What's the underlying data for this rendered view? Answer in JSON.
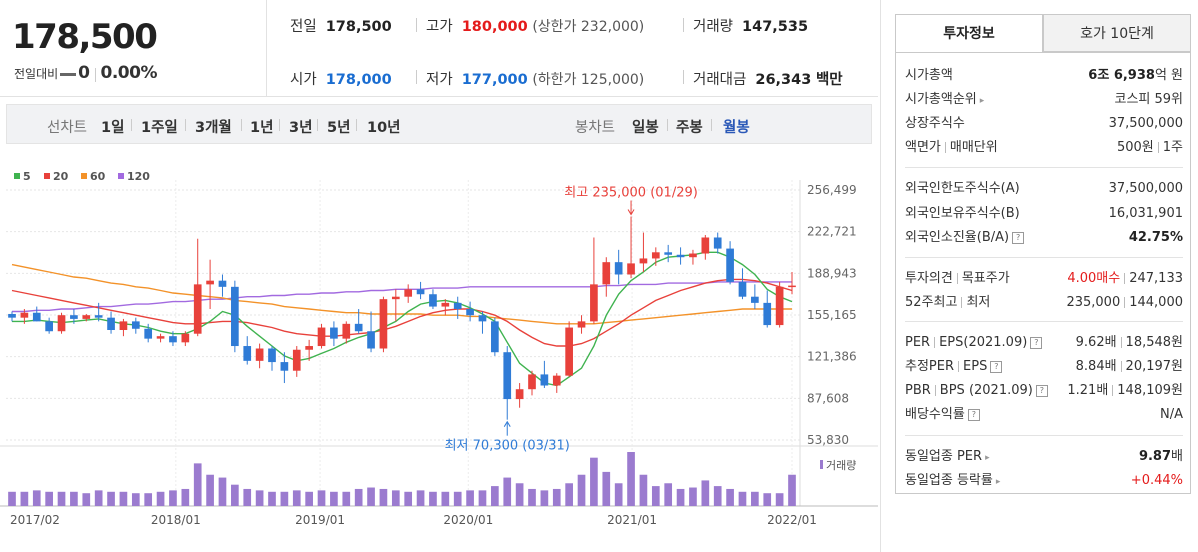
{
  "quote": {
    "current_price": "178,500",
    "change_label": "전일대비",
    "change_value": "0",
    "change_pct": "0.00%"
  },
  "stats": {
    "prev_close_label": "전일",
    "prev_close": "178,500",
    "high_label": "고가",
    "high": "180,000",
    "upper_limit": "(상한가 232,000)",
    "volume_label": "거래량",
    "volume": "147,535",
    "open_label": "시가",
    "open": "178,000",
    "low_label": "저가",
    "low": "177,000",
    "lower_limit": "(하한가 125,000)",
    "amount_label": "거래대금",
    "amount": "26,343",
    "amount_unit": "백만"
  },
  "period_bar": {
    "line_chart_label": "선차트",
    "line_periods": [
      "1일",
      "1주일",
      "3개월",
      "1년",
      "3년",
      "5년",
      "10년"
    ],
    "candle_label": "봉차트",
    "candle_periods": [
      "일봉",
      "주봉",
      "월봉"
    ],
    "active_candle": "월봉"
  },
  "chart_data": {
    "type": "candlestick",
    "legend": [
      {
        "name": "5",
        "color": "#3fb34f"
      },
      {
        "name": "20",
        "color": "#e8413b"
      },
      {
        "name": "60",
        "color": "#f39229"
      },
      {
        "name": "120",
        "color": "#a26ae0"
      }
    ],
    "y_ticks": [
      "256,499",
      "222,721",
      "188,943",
      "155,165",
      "121,386",
      "87,608",
      "53,830"
    ],
    "ylim": [
      53830,
      256499
    ],
    "x_ticks": [
      "2017/02",
      "2018/01",
      "2019/01",
      "2020/01",
      "2021/01",
      "2022/01"
    ],
    "annotations": {
      "max": "최고 235,000 (01/29)",
      "min": "최저 70,300 (03/31)"
    },
    "volume_label": "거래량",
    "up_color": "#e8413b",
    "down_color": "#2f7bd6",
    "volume_color": "#9b7bcf",
    "candles": [
      [
        156000,
        158000,
        150000,
        153000
      ],
      [
        153000,
        160000,
        148000,
        157000
      ],
      [
        157000,
        162000,
        150000,
        150000
      ],
      [
        150000,
        153000,
        140000,
        142000
      ],
      [
        142000,
        157000,
        140000,
        155000
      ],
      [
        155000,
        160000,
        148000,
        152000
      ],
      [
        152000,
        156000,
        150000,
        155000
      ],
      [
        155000,
        165000,
        150000,
        153000
      ],
      [
        153000,
        158000,
        140000,
        143000
      ],
      [
        143000,
        152000,
        138000,
        150000
      ],
      [
        150000,
        153000,
        140000,
        144000
      ],
      [
        144000,
        148000,
        133000,
        136000
      ],
      [
        136000,
        140000,
        133000,
        138000
      ],
      [
        138000,
        142000,
        130000,
        133000
      ],
      [
        133000,
        142000,
        130000,
        140000
      ],
      [
        140000,
        217000,
        138000,
        180000
      ],
      [
        180000,
        200000,
        160000,
        183000
      ],
      [
        183000,
        188000,
        170000,
        178000
      ],
      [
        178000,
        183000,
        125000,
        130000
      ],
      [
        130000,
        138000,
        115000,
        118000
      ],
      [
        118000,
        132000,
        112000,
        128000
      ],
      [
        128000,
        130000,
        110000,
        117000
      ],
      [
        117000,
        125000,
        100000,
        110000
      ],
      [
        110000,
        130000,
        105000,
        127000
      ],
      [
        127000,
        135000,
        118000,
        130000
      ],
      [
        130000,
        148000,
        128000,
        145000
      ],
      [
        145000,
        150000,
        130000,
        136000
      ],
      [
        136000,
        150000,
        132000,
        148000
      ],
      [
        148000,
        160000,
        140000,
        142000
      ],
      [
        142000,
        158000,
        125000,
        128000
      ],
      [
        128000,
        170000,
        125000,
        168000
      ],
      [
        168000,
        176000,
        150000,
        170000
      ],
      [
        170000,
        180000,
        165000,
        176000
      ],
      [
        176000,
        182000,
        168000,
        172000
      ],
      [
        172000,
        176000,
        160000,
        162000
      ],
      [
        162000,
        168000,
        155000,
        165000
      ],
      [
        165000,
        170000,
        152000,
        160000
      ],
      [
        160000,
        166000,
        150000,
        155000
      ],
      [
        155000,
        158000,
        140000,
        150000
      ],
      [
        150000,
        153000,
        122000,
        125000
      ],
      [
        125000,
        130000,
        70300,
        87000
      ],
      [
        87000,
        100000,
        80000,
        95000
      ],
      [
        95000,
        110000,
        90000,
        107000
      ],
      [
        107000,
        118000,
        96000,
        98000
      ],
      [
        98000,
        108000,
        92000,
        106000
      ],
      [
        106000,
        150000,
        105000,
        145000
      ],
      [
        145000,
        155000,
        140000,
        150000
      ],
      [
        150000,
        218000,
        148000,
        180000
      ],
      [
        180000,
        202000,
        170000,
        198000
      ],
      [
        198000,
        208000,
        180000,
        188000
      ],
      [
        188000,
        235000,
        185000,
        197000
      ],
      [
        197000,
        222000,
        190000,
        201000
      ],
      [
        201000,
        210000,
        195000,
        206000
      ],
      [
        206000,
        212000,
        198000,
        204000
      ],
      [
        204000,
        210000,
        196000,
        202000
      ],
      [
        202000,
        208000,
        196000,
        205000
      ],
      [
        205000,
        220000,
        200000,
        218000
      ],
      [
        218000,
        222000,
        205000,
        209000
      ],
      [
        209000,
        215000,
        180000,
        182000
      ],
      [
        182000,
        193000,
        168000,
        170000
      ],
      [
        170000,
        180000,
        160000,
        165000
      ],
      [
        165000,
        175000,
        145000,
        147000
      ],
      [
        147000,
        182000,
        145000,
        178000
      ],
      [
        178000,
        190000,
        172000,
        179000
      ]
    ],
    "ma5": [
      150000,
      150000,
      151000,
      150000,
      149000,
      150000,
      151000,
      152000,
      150000,
      148000,
      147000,
      145000,
      142000,
      140000,
      140000,
      144000,
      150000,
      158000,
      155000,
      146000,
      138000,
      130000,
      122000,
      118000,
      120000,
      124000,
      128000,
      133000,
      137000,
      140000,
      145000,
      150000,
      158000,
      164000,
      166000,
      167000,
      165000,
      161000,
      156000,
      150000,
      133000,
      116000,
      108000,
      100000,
      98000,
      105000,
      112000,
      130000,
      155000,
      172000,
      183000,
      190000,
      198000,
      202000,
      203000,
      204000,
      206000,
      206000,
      202000,
      196000,
      188000,
      176000,
      170000,
      166000
    ],
    "ma20": [
      175000,
      173000,
      171000,
      169000,
      167000,
      165000,
      163000,
      161000,
      159000,
      157000,
      155000,
      153000,
      151000,
      149000,
      148000,
      148000,
      149000,
      150000,
      150000,
      149000,
      147000,
      145000,
      142000,
      140000,
      139000,
      138000,
      138000,
      139000,
      140000,
      141000,
      143000,
      146000,
      150000,
      154000,
      157000,
      159000,
      160000,
      160000,
      158000,
      155000,
      150000,
      143000,
      137000,
      132000,
      130000,
      130000,
      132000,
      136000,
      142000,
      148000,
      155000,
      161000,
      167000,
      171000,
      175000,
      178000,
      181000,
      183000,
      184000,
      184000,
      183000,
      181000,
      178000,
      175000
    ],
    "ma60": [
      196000,
      194000,
      192000,
      190000,
      188000,
      186000,
      185000,
      183000,
      181000,
      180000,
      178000,
      177000,
      175000,
      173000,
      172000,
      171000,
      170000,
      169000,
      167000,
      166000,
      165000,
      164000,
      162000,
      161000,
      160000,
      159000,
      158000,
      157000,
      157000,
      156000,
      156000,
      156000,
      156000,
      156000,
      155000,
      155000,
      155000,
      154000,
      154000,
      153000,
      152000,
      151000,
      150000,
      149000,
      148000,
      148000,
      148000,
      148000,
      149000,
      150000,
      151000,
      152000,
      153000,
      154000,
      155000,
      156000,
      157000,
      158000,
      159000,
      160000,
      160000,
      160000,
      160000,
      160000
    ],
    "ma120": [
      158000,
      158000,
      159000,
      159000,
      160000,
      160000,
      161000,
      162000,
      162000,
      163000,
      164000,
      164000,
      165000,
      166000,
      166000,
      167000,
      168000,
      168000,
      169000,
      170000,
      170000,
      171000,
      171000,
      172000,
      172000,
      173000,
      173000,
      174000,
      174000,
      175000,
      175000,
      176000,
      176000,
      176000,
      177000,
      177000,
      177000,
      178000,
      178000,
      178000,
      178000,
      178000,
      178000,
      178000,
      178000,
      178000,
      178000,
      178000,
      179000,
      179000,
      180000,
      180000,
      180000,
      181000,
      181000,
      181000,
      181000,
      182000,
      182000,
      182000,
      182000,
      182000,
      182000,
      182000
    ],
    "volume": [
      10,
      10,
      11,
      10,
      10,
      10,
      9,
      11,
      10,
      10,
      9,
      9,
      10,
      11,
      12,
      30,
      22,
      20,
      15,
      12,
      11,
      10,
      10,
      11,
      10,
      11,
      10,
      10,
      12,
      13,
      12,
      11,
      10,
      11,
      10,
      10,
      10,
      11,
      11,
      14,
      20,
      16,
      12,
      11,
      12,
      16,
      22,
      34,
      24,
      16,
      38,
      22,
      14,
      16,
      12,
      13,
      18,
      14,
      12,
      10,
      10,
      9,
      9,
      22
    ]
  },
  "info": {
    "tab_invest": "투자정보",
    "tab_hoga": "호가 10단계",
    "rows1": [
      {
        "label": "시가총액",
        "value_strong": "6조 6,938",
        "value_tail": "억 원"
      },
      {
        "label": "시가총액순위",
        "value": "코스피 59위"
      },
      {
        "label": "상장주식수",
        "value": "37,500,000"
      },
      {
        "label_a": "액면가",
        "label_b": "매매단위",
        "value_a": "500원",
        "value_b": "1주"
      }
    ],
    "rows2": [
      {
        "label": "외국인한도주식수(A)",
        "value": "37,500,000"
      },
      {
        "label": "외국인보유주식수(B)",
        "value": "16,031,901"
      },
      {
        "label": "외국인소진율(B/A)",
        "value": "42.75%"
      }
    ],
    "rows3": {
      "opinion_label": "투자의견",
      "target_label": "목표주가",
      "opinion_value": "4.00매수",
      "target_value": "247,133",
      "w52_label_a": "52주최고",
      "w52_label_b": "최저",
      "w52_high": "235,000",
      "w52_low": "144,000"
    },
    "rows4": [
      {
        "label": "PER",
        "label_b": "EPS(2021.09)",
        "value_a": "9.62배",
        "value_b": "18,548원"
      },
      {
        "label": "추정PER",
        "label_b": "EPS",
        "value_a": "8.84배",
        "value_b": "20,197원"
      },
      {
        "label": "PBR",
        "label_b": "BPS (2021.09)",
        "value_a": "1.21배",
        "value_b": "148,109원"
      },
      {
        "label": "배당수익률",
        "value": "N/A"
      }
    ],
    "rows5": [
      {
        "label": "동일업종 PER",
        "value_strong": "9.87",
        "value_tail": "배"
      },
      {
        "label": "동일업종 등락률",
        "value": "+0.44%"
      }
    ]
  }
}
